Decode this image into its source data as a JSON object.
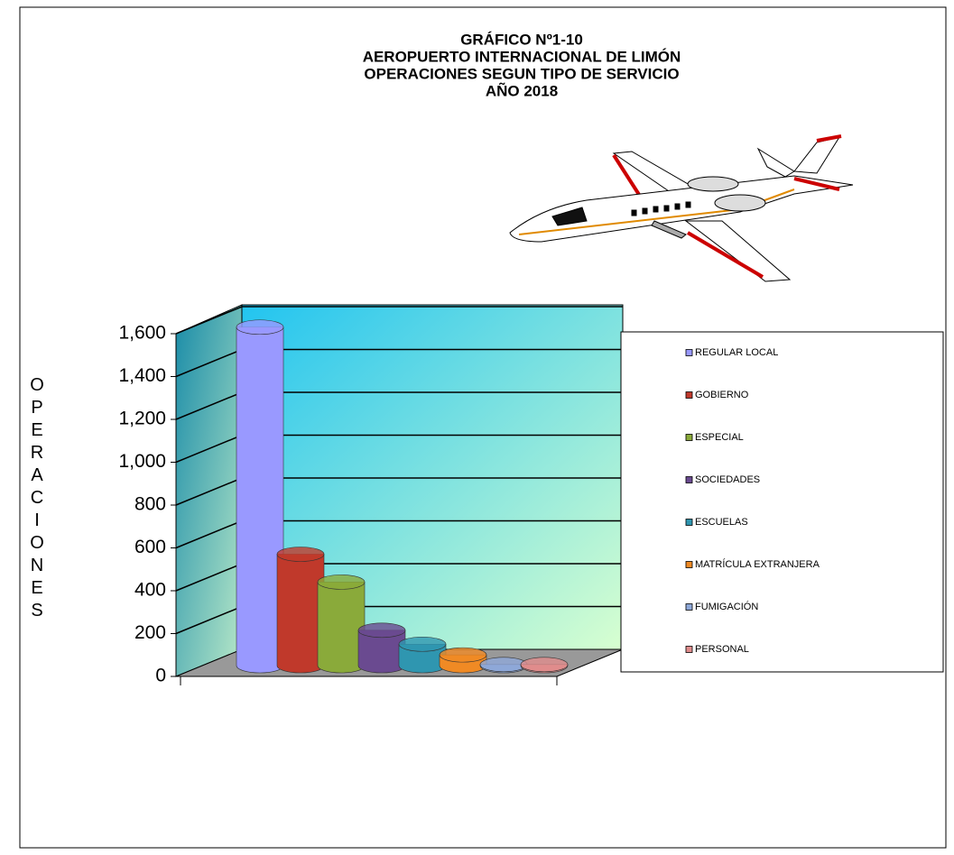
{
  "chart_data": {
    "type": "bar",
    "title": [
      "GRÁFICO Nº1-10",
      "AEROPUERTO INTERNACIONAL DE LIMÓN",
      "OPERACIONES SEGUN TIPO DE SERVICIO",
      "AÑO 2018"
    ],
    "y_label": "OPERACIONES",
    "series": [
      {
        "name": "REGULAR LOCAL",
        "color": "#9999ff",
        "values": [
          1580
        ]
      },
      {
        "name": "GOBIERNO",
        "color": "#c0392b",
        "values": [
          520
        ]
      },
      {
        "name": "ESPECIAL",
        "color": "#8aaa3a",
        "values": [
          390
        ]
      },
      {
        "name": "SOCIEDADES",
        "color": "#6a4a90",
        "values": [
          165
        ]
      },
      {
        "name": "ESCUELAS",
        "color": "#2f96b0",
        "values": [
          100
        ]
      },
      {
        "name": "MATRÍCULA EXTRANJERA",
        "color": "#f08a24",
        "values": [
          50
        ]
      },
      {
        "name": "FUMIGACIÓN",
        "color": "#8ea8d8",
        "values": [
          5
        ]
      },
      {
        "name": "PERSONAL",
        "color": "#e08c8c",
        "values": [
          5
        ]
      }
    ],
    "ylim": [
      0,
      1600
    ],
    "yticks": [
      0,
      200,
      400,
      600,
      800,
      {
        "value": 1000,
        "label": "1,000"
      },
      {
        "value": 1200,
        "label": "1,200"
      },
      {
        "value": 1400,
        "label": "1,400"
      },
      {
        "value": 1600,
        "label": "1,600"
      }
    ],
    "grid": true
  }
}
